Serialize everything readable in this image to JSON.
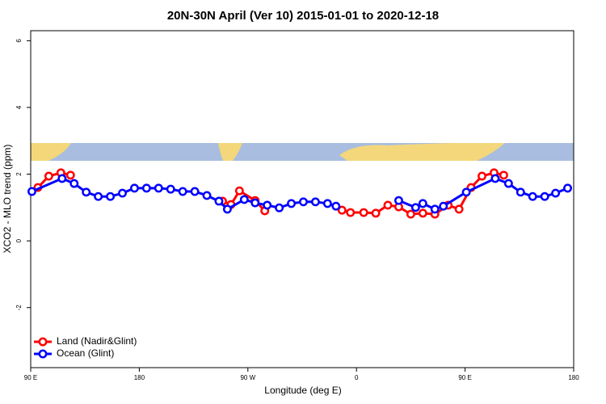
{
  "chart_data": {
    "type": "line",
    "title": "20N-30N April (Ver 10)   2015-01-01 to 2020-12-18",
    "x_label": "Longitude (deg E)",
    "y_label": "XCO2 - MLO trend (ppm)",
    "xlim": [
      90,
      540
    ],
    "ylim": [
      -3.8,
      6.3
    ],
    "xticks": [
      {
        "value": 90,
        "label": "90 E"
      },
      180,
      {
        "value": 270,
        "label": "90 W"
      },
      0,
      {
        "value": 450,
        "label": "90 E"
      },
      {
        "value": 540,
        "label": "180"
      }
    ],
    "yticks": [
      6,
      4,
      2,
      0,
      -2
    ],
    "legend": "bottom-left",
    "series": [
      {
        "name": "Land (Nadir&Glint)",
        "color": "#ff0000",
        "x": [
          96,
          105,
          115,
          123,
          null,
          249,
          256,
          263,
          276,
          284,
          null,
          348,
          355,
          366,
          376,
          386,
          395,
          405,
          415,
          425,
          436,
          445,
          455,
          464,
          474,
          482
        ],
        "values": [
          1.6,
          1.94,
          2.04,
          1.97,
          null,
          1.19,
          1.09,
          1.5,
          1.21,
          0.9,
          null,
          0.92,
          0.85,
          0.85,
          0.83,
          1.07,
          1.02,
          0.8,
          0.83,
          0.8,
          1.07,
          0.95,
          1.6,
          1.94,
          2.04,
          1.97
        ]
      },
      {
        "name": "Ocean (Glint)",
        "color": "#0000ff",
        "x": [
          91,
          116,
          126,
          136,
          146,
          156,
          166,
          176,
          186,
          196,
          206,
          216,
          226,
          236,
          246,
          253,
          267,
          276,
          286,
          296,
          306,
          316,
          326,
          336,
          343,
          null,
          395,
          409,
          415,
          425,
          432,
          451,
          475,
          486,
          496,
          506,
          516,
          525,
          535
        ],
        "values": [
          1.48,
          1.87,
          1.72,
          1.46,
          1.33,
          1.33,
          1.43,
          1.58,
          1.58,
          1.58,
          1.55,
          1.48,
          1.48,
          1.36,
          1.19,
          0.95,
          1.24,
          1.14,
          1.07,
          0.99,
          1.12,
          1.17,
          1.17,
          1.12,
          1.04,
          null,
          1.21,
          1.0,
          1.12,
          0.95,
          1.04,
          1.46,
          1.87,
          1.72,
          1.46,
          1.33,
          1.33,
          1.43,
          1.58
        ]
      }
    ]
  }
}
